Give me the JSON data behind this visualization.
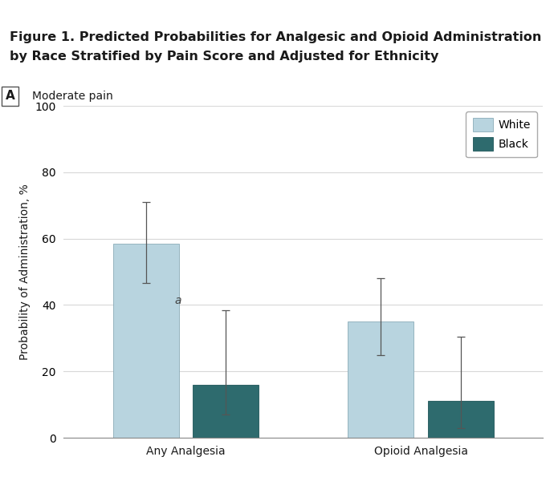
{
  "title_line1": "Figure 1. Predicted Probabilities for Analgesic and Opioid Administration",
  "title_line2": "by Race Stratified by Pain Score and Adjusted for Ethnicity",
  "panel_label": "A",
  "panel_title": "Moderate pain",
  "categories": [
    "Any Analgesia",
    "Opioid Analgesia"
  ],
  "white_values": [
    58.5,
    35.0
  ],
  "black_values": [
    16.0,
    11.0
  ],
  "white_errors_upper": [
    12.5,
    13.0
  ],
  "white_errors_lower": [
    12.0,
    10.0
  ],
  "black_errors_upper": [
    22.5,
    19.5
  ],
  "black_errors_lower": [
    9.0,
    8.0
  ],
  "white_color": "#b8d4df",
  "black_color": "#2e6b6e",
  "ylabel": "Probability of Administration, %",
  "ylim": [
    0,
    100
  ],
  "yticks": [
    0,
    20,
    40,
    60,
    80,
    100
  ],
  "bar_width": 0.28,
  "annotation_text": "a",
  "fig_background": "#ffffff",
  "top_bar_color": "#3fb8c8",
  "grid_color": "#d8d8d8",
  "title_color": "#1a1a1a",
  "legend_labels": [
    "White",
    "Black"
  ],
  "font_size_title": 11.5,
  "font_size_axis": 10,
  "font_size_tick": 10,
  "font_size_panel": 11
}
